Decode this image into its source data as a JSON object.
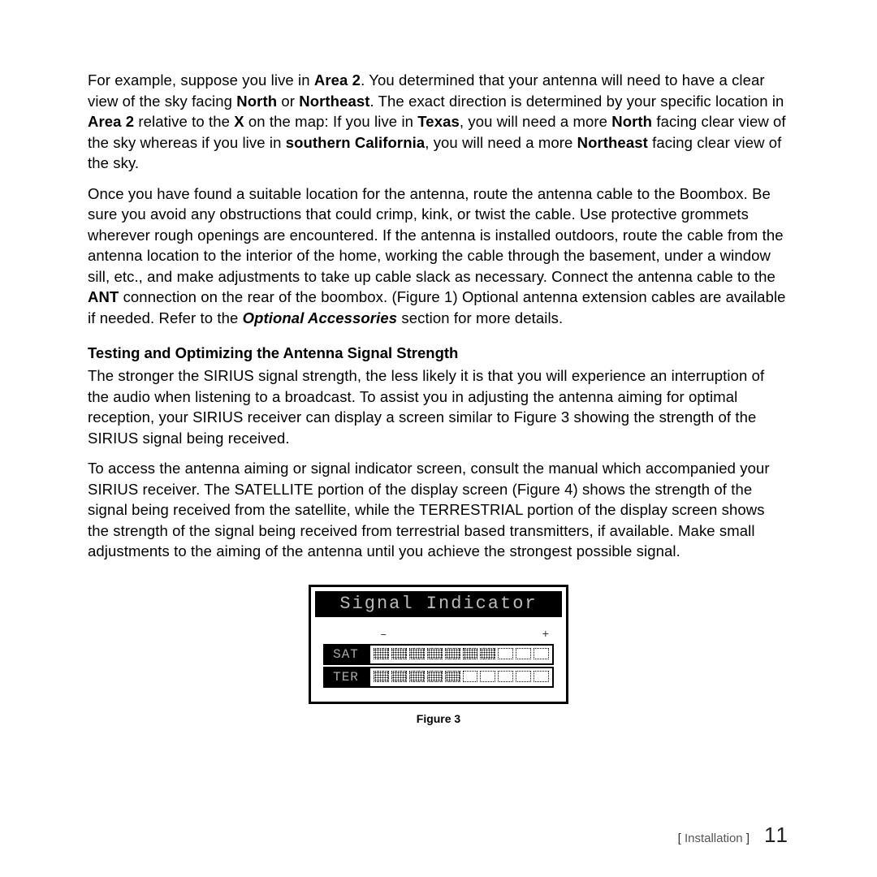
{
  "paragraphs": {
    "p1_a": "For example, suppose you live in ",
    "p1_area2": "Area 2",
    "p1_b": ". You determined that your antenna will need to have a clear view of the sky facing ",
    "p1_north": "North",
    "p1_c": " or ",
    "p1_northeast": "Northeast",
    "p1_d": ". The exact direction is determined by your specific location in ",
    "p1_area2b": "Area 2",
    "p1_e": " relative to the ",
    "p1_x": "X",
    "p1_f": " on the map: If you live in ",
    "p1_texas": "Texas",
    "p1_g": ", you will need a more ",
    "p1_north2": "North",
    "p1_h": " facing clear view of the sky whereas if you live in ",
    "p1_socal": "southern California",
    "p1_i": ", you will need a more ",
    "p1_northeast2": "Northeast",
    "p1_j": " facing clear view of the sky.",
    "p2_a": "Once you have found a suitable location for the antenna, route the antenna cable to the Boombox. Be sure you avoid any obstructions that could crimp, kink, or twist the cable. Use protective grommets wherever rough openings are encountered. If the antenna is installed outdoors, route the cable from the antenna location to the interior of the home, working the cable through the basement, under a window sill, etc., and make adjustments to take up cable slack as necessary. Connect the antenna cable to the ",
    "p2_ant": "ANT",
    "p2_b": " connection on the rear of the boombox. (Figure 1) Optional antenna extension cables are available if needed. Refer to the ",
    "p2_optacc": "Optional Accessories",
    "p2_c": " section for more details.",
    "section_title": "Testing and Optimizing the Antenna Signal Strength",
    "p3": "The stronger the SIRIUS signal strength, the less likely it is that you will experience an interruption of the audio when listening to a broadcast. To assist you in adjusting the antenna aiming for optimal reception, your SIRIUS receiver can display a screen similar to Figure 3 showing the strength of the SIRIUS signal being received.",
    "p4": "To access the antenna aiming or signal indicator screen, consult the manual which accompanied your SIRIUS receiver. The SATELLITE portion of the display screen (Figure 4) shows the strength of the signal being received from the satellite, while the TERRESTRIAL portion of the display screen shows the strength of the signal being received from terrestrial based transmitters, if available. Make small adjustments to the aiming of the antenna until you achieve the strongest possible signal."
  },
  "figure": {
    "lcd_title": "Signal Indicator",
    "scale_minus": "–",
    "scale_plus": "+",
    "rows": [
      {
        "label": "SAT",
        "segments": 10,
        "filled": 7
      },
      {
        "label": "TER",
        "segments": 10,
        "filled": 5
      }
    ],
    "caption": "Figure 3"
  },
  "footer": {
    "section": "Installation",
    "page": "11"
  },
  "colors": {
    "text": "#000000",
    "background": "#ffffff",
    "lcd_bg": "#000000",
    "lcd_fg": "#bbbbbb"
  }
}
